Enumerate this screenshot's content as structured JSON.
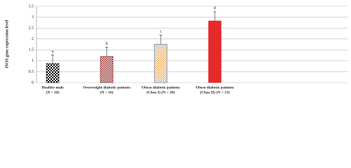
{
  "chart_data": {
    "type": "bar",
    "y_label": "iNOS gene expression level",
    "categories": [
      [
        "Healthy male",
        "(N = 18)"
      ],
      [
        "Overweight diabetic patients",
        "(N = 16)"
      ],
      [
        "Obese diabetic patients",
        "(Class I) (N = 20)"
      ],
      [
        "Obese diabetic patients",
        "(Class II) (N = 13)"
      ]
    ],
    "values": [
      0.87,
      1.2,
      1.76,
      2.83
    ],
    "errors": [
      0.4,
      0.42,
      0.42,
      0.42
    ],
    "significance_labels": [
      "a",
      "b",
      "c",
      "d"
    ],
    "colors": [
      "#000000",
      "#8b1a1a",
      "#e89a3a",
      "#e8292a"
    ],
    "ylim": [
      0,
      3.5
    ],
    "yticks": [
      0,
      0.5,
      1,
      1.5,
      2,
      2.5,
      3,
      3.5
    ],
    "grid": true
  }
}
